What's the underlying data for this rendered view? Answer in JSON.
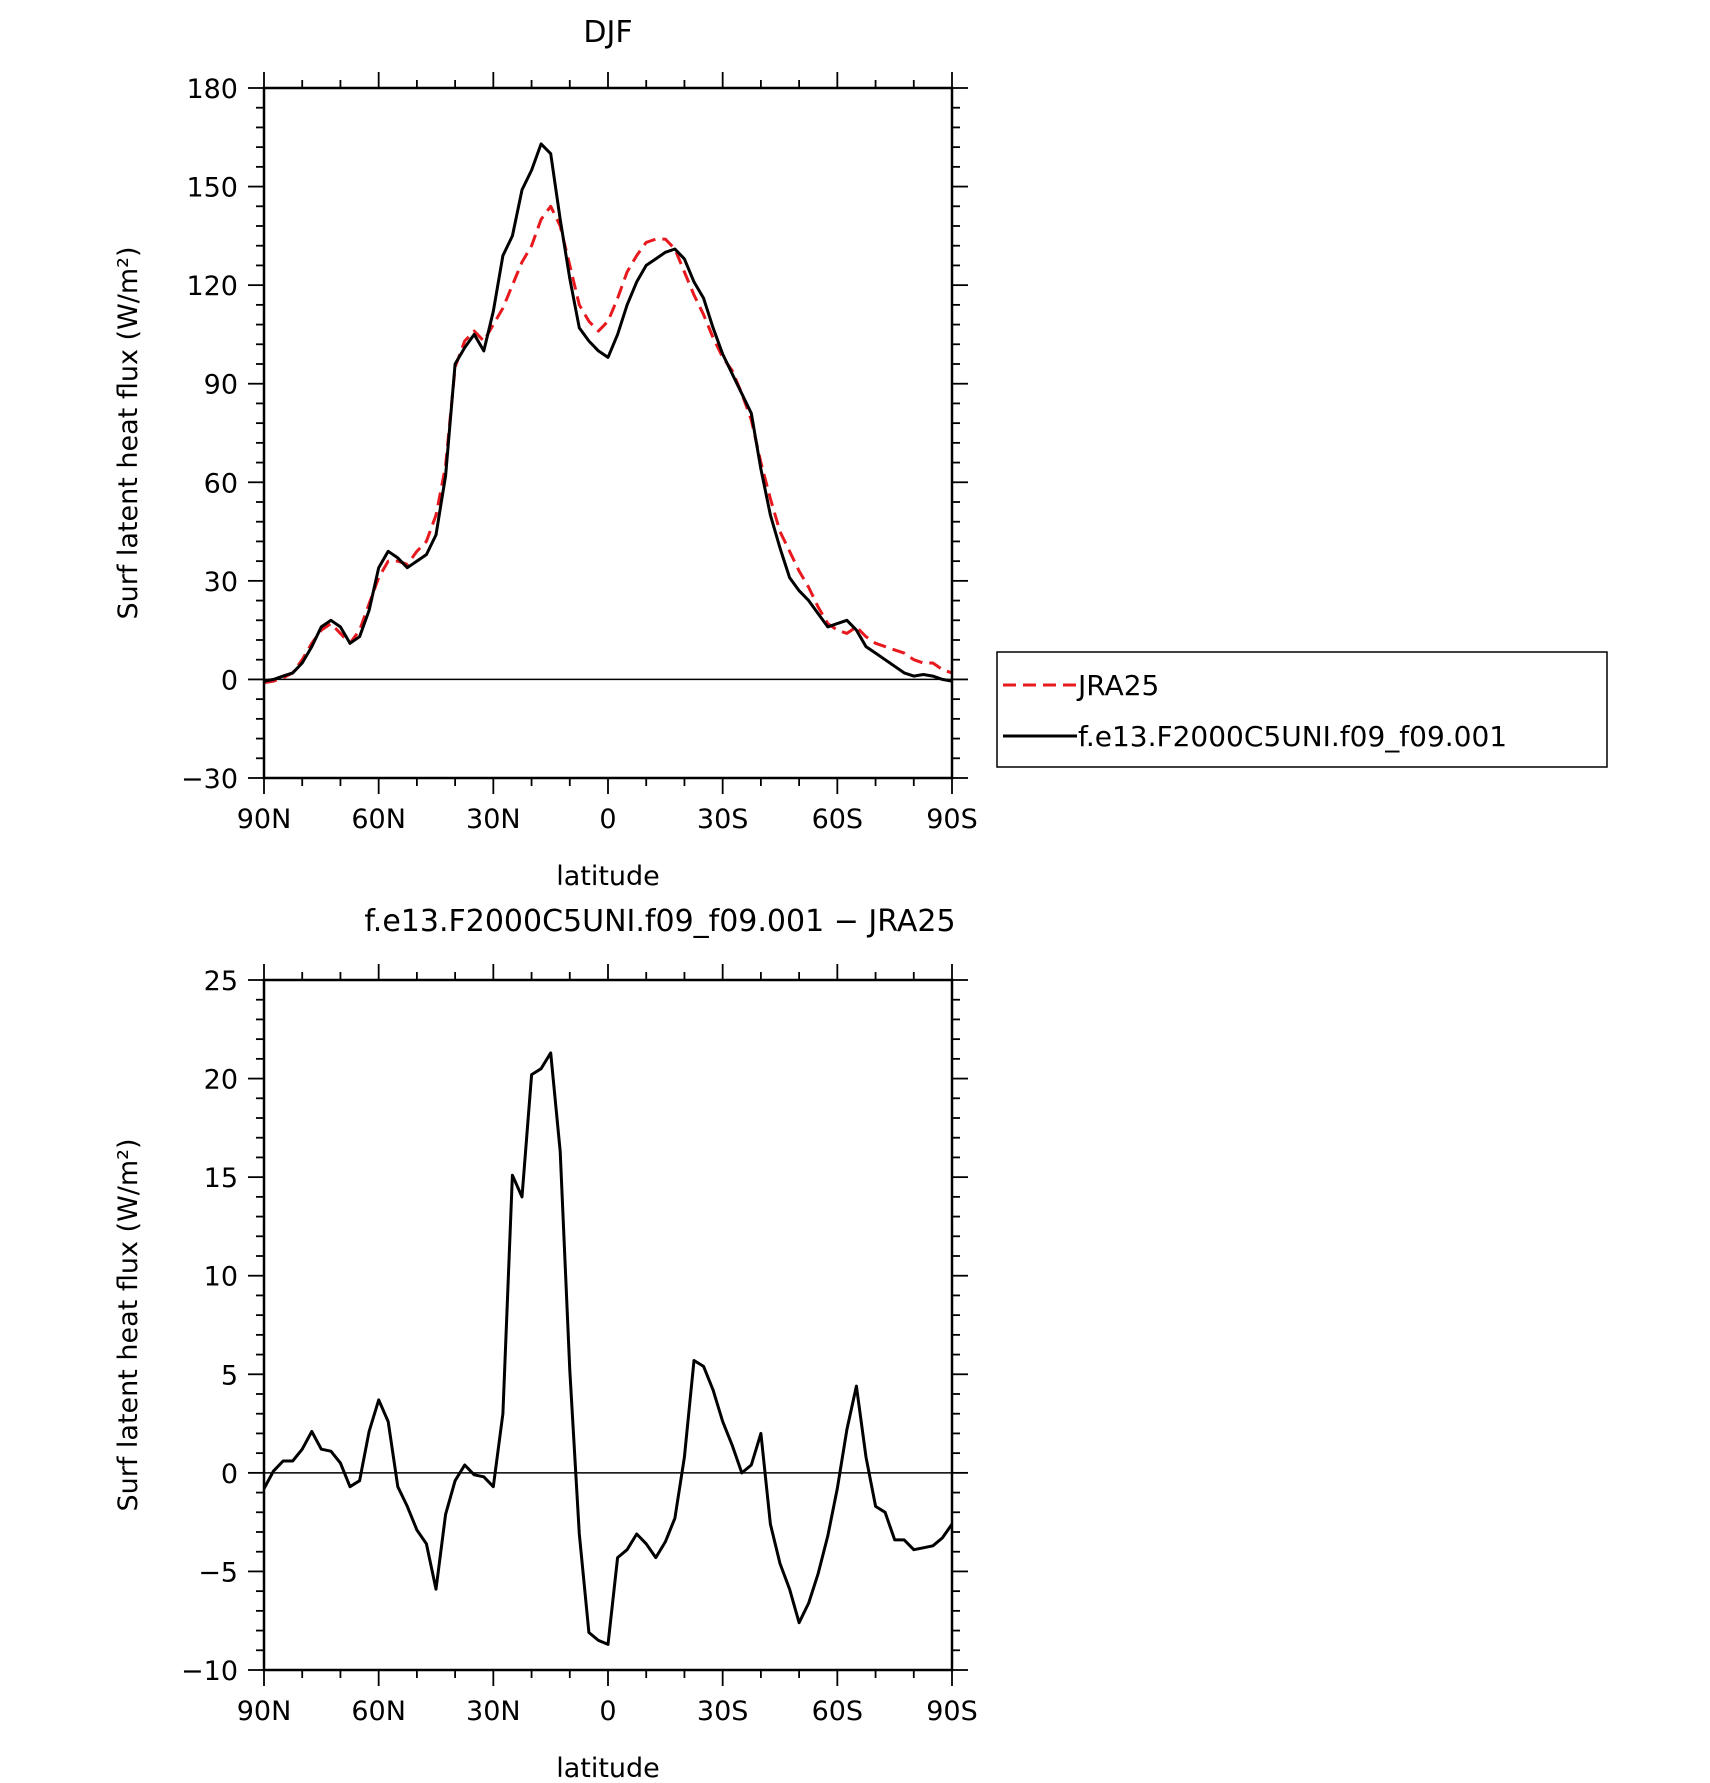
{
  "chart_data": [
    {
      "type": "line",
      "title": "DJF",
      "xlabel": "latitude",
      "ylabel": "Surf latent heat flux (W/m²)",
      "xlim": [
        -90,
        90
      ],
      "ylim": [
        -30,
        180
      ],
      "x_direction": "north-to-south",
      "xticks": [
        -90,
        -60,
        -30,
        0,
        30,
        60,
        90
      ],
      "xtick_labels": [
        "90N",
        "60N",
        "30N",
        "0",
        "30S",
        "60S",
        "90S"
      ],
      "yticks": [
        -30,
        0,
        30,
        60,
        90,
        120,
        150,
        180
      ],
      "ytick_labels": [
        "−30",
        "0",
        "30",
        "60",
        "90",
        "120",
        "150",
        "180"
      ],
      "grid": false,
      "legend_position": "outside-right",
      "series": [
        {
          "name": "JRA25",
          "color": "#e8191e",
          "style": "dashed",
          "x": [
            -90,
            -87.5,
            -85,
            -82.5,
            -80,
            -77.5,
            -75,
            -72.5,
            -70,
            -67.5,
            -65,
            -62.5,
            -60,
            -57.5,
            -55,
            -52.5,
            -50,
            -47.5,
            -45,
            -42.5,
            -40,
            -37.5,
            -35,
            -32.5,
            -30,
            -27.5,
            -25,
            -22.5,
            -20,
            -17.5,
            -15,
            -12.5,
            -10,
            -7.5,
            -5,
            -2.5,
            0,
            2.5,
            5,
            7.5,
            10,
            12.5,
            15,
            17.5,
            20,
            22.5,
            25,
            27.5,
            30,
            32.5,
            35,
            37.5,
            40,
            42.5,
            45,
            47.5,
            50,
            52.5,
            55,
            57.5,
            60,
            62.5,
            65,
            67.5,
            70,
            72.5,
            75,
            77.5,
            80,
            82.5,
            85,
            87.5,
            90
          ],
          "y": [
            -1,
            -0.5,
            0.5,
            2,
            6,
            11,
            15,
            17,
            14,
            11,
            15,
            23,
            31,
            36,
            36,
            35,
            39,
            42,
            50,
            65,
            95,
            103,
            106,
            103,
            108,
            113,
            120,
            127,
            132,
            140,
            144,
            138,
            126,
            114,
            109,
            106,
            109,
            116,
            124,
            129,
            133,
            134,
            134,
            131,
            124,
            117,
            111,
            104,
            98,
            94,
            87,
            79,
            66,
            55,
            45,
            39,
            33,
            28,
            22,
            17,
            15,
            14,
            16,
            13,
            11,
            10,
            9,
            8,
            6,
            5,
            5,
            3,
            2
          ]
        },
        {
          "name": "f.e13.F2000C5UNI.f09_f09.001",
          "color": "#000000",
          "style": "solid",
          "x": [
            -90,
            -87.5,
            -85,
            -82.5,
            -80,
            -77.5,
            -75,
            -72.5,
            -70,
            -67.5,
            -65,
            -62.5,
            -60,
            -57.5,
            -55,
            -52.5,
            -50,
            -47.5,
            -45,
            -42.5,
            -40,
            -37.5,
            -35,
            -32.5,
            -30,
            -27.5,
            -25,
            -22.5,
            -20,
            -17.5,
            -15,
            -12.5,
            -10,
            -7.5,
            -5,
            -2.5,
            0,
            2.5,
            5,
            7.5,
            10,
            12.5,
            15,
            17.5,
            20,
            22.5,
            25,
            27.5,
            30,
            32.5,
            35,
            37.5,
            40,
            42.5,
            45,
            47.5,
            50,
            52.5,
            55,
            57.5,
            60,
            62.5,
            65,
            67.5,
            70,
            72.5,
            75,
            77.5,
            80,
            82.5,
            85,
            87.5,
            90
          ],
          "y": [
            -0.5,
            0,
            1,
            2,
            5,
            10,
            16,
            18,
            16,
            11,
            13,
            21,
            34,
            39,
            37,
            34,
            36,
            38,
            44,
            62,
            96,
            101,
            105,
            100,
            112,
            129,
            135,
            149,
            155,
            163,
            160,
            140,
            122,
            107,
            103,
            100,
            98,
            105,
            114,
            121,
            126,
            128,
            130,
            131,
            128,
            121,
            116,
            107,
            99,
            93,
            87,
            81,
            64,
            50,
            40,
            31,
            27,
            24,
            20,
            16,
            17,
            18,
            15,
            10,
            8,
            6,
            4,
            2,
            1,
            1.5,
            1,
            0,
            -0.5
          ]
        }
      ]
    },
    {
      "type": "line",
      "title": "f.e13.F2000C5UNI.f09_f09.001 − JRA25",
      "xlabel": "latitude",
      "ylabel": "Surf latent heat flux (W/m²)",
      "xlim": [
        -90,
        90
      ],
      "ylim": [
        -10,
        25
      ],
      "x_direction": "north-to-south",
      "xticks": [
        -90,
        -60,
        -30,
        0,
        30,
        60,
        90
      ],
      "xtick_labels": [
        "90N",
        "60N",
        "30N",
        "0",
        "30S",
        "60S",
        "90S"
      ],
      "yticks": [
        -10,
        -5,
        0,
        5,
        10,
        15,
        20,
        25
      ],
      "ytick_labels": [
        "−10",
        "−5",
        "0",
        "5",
        "10",
        "15",
        "20",
        "25"
      ],
      "grid": false,
      "series": [
        {
          "color": "#000000",
          "style": "solid",
          "x": [
            -90,
            -87.5,
            -85,
            -82.5,
            -80,
            -77.5,
            -75,
            -72.5,
            -70,
            -67.5,
            -65,
            -62.5,
            -60,
            -57.5,
            -55,
            -52.5,
            -50,
            -47.5,
            -45,
            -42.5,
            -40,
            -37.5,
            -35,
            -32.5,
            -30,
            -27.5,
            -25,
            -22.5,
            -20,
            -17.5,
            -15,
            -12.5,
            -10,
            -7.5,
            -5,
            -2.5,
            0,
            2.5,
            5,
            7.5,
            10,
            12.5,
            15,
            17.5,
            20,
            22.5,
            25,
            27.5,
            30,
            32.5,
            35,
            37.5,
            40,
            42.5,
            45,
            47.5,
            50,
            52.5,
            55,
            57.5,
            60,
            62.5,
            65,
            67.5,
            70,
            72.5,
            75,
            77.5,
            80,
            82.5,
            85,
            87.5,
            90
          ],
          "y": [
            -0.8,
            0.1,
            0.6,
            0.6,
            1.2,
            2.1,
            1.2,
            1.1,
            0.5,
            -0.7,
            -0.4,
            2.1,
            3.7,
            2.6,
            -0.7,
            -1.7,
            -2.9,
            -3.6,
            -5.9,
            -2.1,
            -0.4,
            0.4,
            -0.1,
            -0.2,
            -0.7,
            3.0,
            15.1,
            14.0,
            20.2,
            20.5,
            21.3,
            16.3,
            5.2,
            -3.1,
            -8.1,
            -8.5,
            -8.7,
            -4.3,
            -3.9,
            -3.1,
            -3.6,
            -4.3,
            -3.5,
            -2.3,
            0.8,
            5.7,
            5.4,
            4.2,
            2.6,
            1.4,
            0.0,
            0.4,
            2.0,
            -2.6,
            -4.6,
            -5.9,
            -7.6,
            -6.6,
            -5.1,
            -3.2,
            -0.8,
            2.2,
            4.4,
            0.8,
            -1.7,
            -2.0,
            -3.4,
            -3.4,
            -3.9,
            -3.8,
            -3.7,
            -3.3,
            -2.6
          ]
        }
      ]
    }
  ]
}
